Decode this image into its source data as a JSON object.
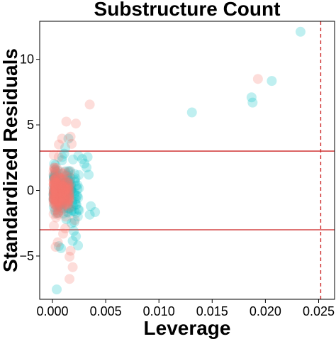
{
  "chart_data": {
    "type": "scatter",
    "title": "Substructure Count",
    "xlabel": "Leverage",
    "ylabel": "Standardized Residuals",
    "xlim": [
      -0.0012,
      0.0265
    ],
    "ylim": [
      -8.3,
      12.9
    ],
    "x_ticks": [
      0.0,
      0.005,
      0.01,
      0.015,
      0.02,
      0.025
    ],
    "x_tick_labels": [
      "0.000",
      "0.005",
      "0.010",
      "0.015",
      "0.020",
      "0.025"
    ],
    "y_ticks": [
      -5,
      0,
      5,
      10
    ],
    "y_tick_labels": [
      "−5",
      "0",
      "5",
      "10"
    ],
    "grid": false,
    "legend": "none",
    "reference_lines": {
      "horizontal": [
        3,
        -3
      ],
      "horizontal_color": "#cc2222",
      "vertical": [
        0.0252
      ],
      "vertical_color": "#cc2222",
      "vertical_style": "dashed"
    },
    "colors": {
      "salmon": "#f8766d",
      "cyan": "#00bfc4"
    },
    "series": [
      {
        "color_key": "cyan",
        "points": [
          [
            0.0233,
            12.1
          ],
          [
            0.0206,
            8.35
          ],
          [
            0.0187,
            7.1
          ],
          [
            0.0188,
            6.7
          ],
          [
            0.0131,
            5.95
          ],
          [
            0.0033,
            2.55
          ],
          [
            0.003,
            2.05
          ],
          [
            0.0032,
            1.75
          ],
          [
            0.0034,
            1.2
          ],
          [
            0.0028,
            2.4
          ],
          [
            0.0036,
            -1.2
          ],
          [
            0.004,
            -1.65
          ],
          [
            0.0035,
            -1.85
          ],
          [
            0.0025,
            -1.5
          ],
          [
            0.002,
            -3.1
          ],
          [
            0.0022,
            -3.5
          ],
          [
            0.0019,
            -3.85
          ],
          [
            0.0024,
            -4.2
          ],
          [
            0.0008,
            -4.4
          ],
          [
            0.0006,
            -4.25
          ],
          [
            0.0004,
            -7.55
          ],
          [
            0.0015,
            3.95
          ],
          [
            0.0012,
            3.25
          ],
          [
            0.0009,
            2.3
          ],
          [
            0.0018,
            -2.5
          ],
          [
            0.0013,
            -2.2
          ],
          [
            0.0011,
            2.8
          ]
        ]
      },
      {
        "color_key": "salmon",
        "points": [
          [
            0.0193,
            8.5
          ],
          [
            0.0035,
            6.55
          ],
          [
            0.0013,
            5.25
          ],
          [
            0.0022,
            5.1
          ],
          [
            0.0017,
            4.1
          ],
          [
            0.0009,
            3.95
          ],
          [
            0.0006,
            3.5
          ],
          [
            0.0018,
            3.55
          ],
          [
            0.0021,
            -2.25
          ],
          [
            0.001,
            -3.3
          ],
          [
            0.0005,
            -3.95
          ],
          [
            0.0003,
            -4.3
          ],
          [
            0.0017,
            -4.6
          ],
          [
            0.0016,
            -5.05
          ],
          [
            0.0019,
            -5.85
          ],
          [
            0.0016,
            -6.75
          ],
          [
            0.0012,
            -2.9
          ]
        ]
      }
    ]
  }
}
